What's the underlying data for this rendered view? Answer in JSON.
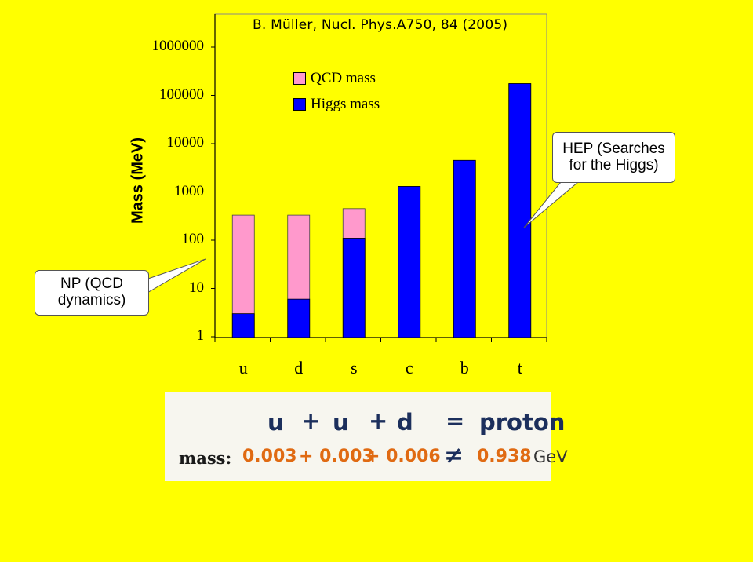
{
  "reference": "B. Müller, Nucl. Phys.A750, 84 (2005)",
  "colors": {
    "background": "#ffff00",
    "qcd": "#ff99cc",
    "higgs": "#0000ff"
  },
  "chart_data": {
    "type": "bar",
    "stacked": true,
    "log_scale_y": true,
    "ylabel": "Mass (MeV)",
    "ylim": [
      1,
      1000000
    ],
    "yticks": [
      "1000000",
      "100000",
      "10000",
      "1000",
      "100",
      "10",
      "1"
    ],
    "categories": [
      "u",
      "d",
      "s",
      "c",
      "b",
      "t"
    ],
    "series": [
      {
        "name": "Higgs mass",
        "color": "#0000ff",
        "values": [
          3,
          6,
          110,
          1300,
          4500,
          175000
        ]
      },
      {
        "name": "QCD mass",
        "color": "#ff99cc",
        "values": [
          330,
          330,
          450,
          1300,
          4500,
          175000
        ]
      }
    ],
    "legend": [
      "QCD mass",
      "Higgs mass"
    ],
    "legend_position": "top-center",
    "grid": false
  },
  "callouts": {
    "left": [
      "NP (QCD",
      "dynamics)"
    ],
    "right": [
      "HEP (Searches",
      "for the Higgs)"
    ]
  },
  "equation": {
    "line1": [
      "u",
      "+",
      "u",
      "+",
      "d",
      "=",
      "proton"
    ],
    "mass_label": "mass:",
    "line2": [
      "0.003",
      "+ 0.003",
      "+ 0.006",
      "≠",
      "0.938"
    ],
    "unit": "GeV"
  }
}
